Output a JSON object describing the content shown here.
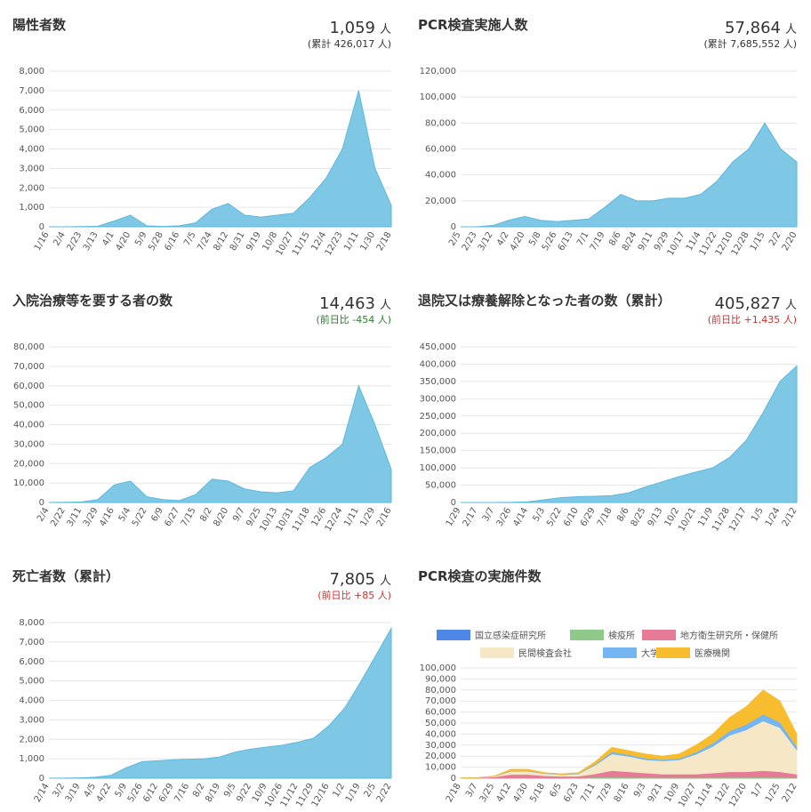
{
  "chart_data": [
    {
      "type": "area",
      "title": "陽性者数",
      "headline": "1,059",
      "unit": "人",
      "note": "(累計 426,017 人)",
      "note_color": "#333333",
      "color": "#7ec8e6",
      "categories": [
        "1/16",
        "2/4",
        "2/23",
        "3/13",
        "4/1",
        "4/20",
        "5/9",
        "5/28",
        "6/16",
        "7/5",
        "7/24",
        "8/12",
        "8/31",
        "9/19",
        "10/8",
        "10/27",
        "11/15",
        "12/4",
        "12/23",
        "1/11",
        "1/30",
        "2/18"
      ],
      "values": [
        0,
        0,
        10,
        30,
        300,
        600,
        50,
        20,
        50,
        200,
        900,
        1200,
        600,
        500,
        600,
        700,
        1500,
        2500,
        4000,
        7000,
        3000,
        1100
      ],
      "ylim": [
        0,
        8000
      ],
      "yticks": [
        0,
        {
          "value": 1000,
          "label": "1,000"
        },
        {
          "value": 2000,
          "label": "2,000"
        },
        {
          "value": 3000,
          "label": "3,000"
        },
        {
          "value": 4000,
          "label": "4,000"
        },
        {
          "value": 5000,
          "label": "5,000"
        },
        {
          "value": 6000,
          "label": "6,000"
        },
        {
          "value": 7000,
          "label": "7,000"
        },
        {
          "value": 8000,
          "label": "8,000"
        }
      ],
      "grid": true
    },
    {
      "type": "area",
      "title": "PCR検査実施人数",
      "headline": "57,864",
      "unit": "人",
      "note": "(累計 7,685,552 人)",
      "note_color": "#333333",
      "color": "#7ec8e6",
      "categories": [
        "2/5",
        "2/23",
        "3/12",
        "4/2",
        "4/20",
        "5/8",
        "5/26",
        "6/13",
        "7/1",
        "7/19",
        "8/6",
        "8/24",
        "9/11",
        "9/29",
        "10/17",
        "11/4",
        "11/22",
        "12/10",
        "12/28",
        "1/15",
        "2/2",
        "2/20"
      ],
      "values": [
        0,
        0,
        1000,
        5000,
        8000,
        5000,
        4000,
        5000,
        6000,
        15000,
        25000,
        20000,
        20000,
        22000,
        22000,
        25000,
        35000,
        50000,
        60000,
        80000,
        60000,
        50000
      ],
      "ylim": [
        0,
        120000
      ],
      "yticks": [
        0,
        {
          "value": 20000,
          "label": "20,000"
        },
        {
          "value": 40000,
          "label": "40,000"
        },
        {
          "value": 60000,
          "label": "60,000"
        },
        {
          "value": 80000,
          "label": "80,000"
        },
        {
          "value": 100000,
          "label": "100,000"
        },
        {
          "value": 120000,
          "label": "120,000"
        }
      ],
      "grid": true
    },
    {
      "type": "area",
      "title": "入院治療等を要する者の数",
      "headline": "14,463",
      "unit": "人",
      "note": "(前日比 -454 人)",
      "note_color": "#2e7d32",
      "color": "#7ec8e6",
      "categories": [
        "2/4",
        "2/22",
        "3/11",
        "3/29",
        "4/16",
        "5/4",
        "5/22",
        "6/9",
        "6/27",
        "7/15",
        "8/2",
        "8/20",
        "9/7",
        "9/25",
        "10/13",
        "10/31",
        "11/18",
        "12/6",
        "12/24",
        "1/11",
        "1/29",
        "2/16"
      ],
      "values": [
        0,
        100,
        300,
        1500,
        9000,
        11000,
        3000,
        1500,
        1000,
        4000,
        12000,
        11000,
        7000,
        5500,
        5000,
        6000,
        18000,
        23000,
        30000,
        60000,
        40000,
        17000
      ],
      "ylim": [
        0,
        80000
      ],
      "yticks": [
        0,
        {
          "value": 10000,
          "label": "10,000"
        },
        {
          "value": 20000,
          "label": "20,000"
        },
        {
          "value": 30000,
          "label": "30,000"
        },
        {
          "value": 40000,
          "label": "40,000"
        },
        {
          "value": 50000,
          "label": "50,000"
        },
        {
          "value": 60000,
          "label": "60,000"
        },
        {
          "value": 70000,
          "label": "70,000"
        },
        {
          "value": 80000,
          "label": "80,000"
        }
      ],
      "grid": true
    },
    {
      "type": "area",
      "title": "退院又は療養解除となった者の数（累計）",
      "headline": "405,827",
      "unit": "人",
      "note": "(前日比 +1,435 人)",
      "note_color": "#d32f2f",
      "color": "#7ec8e6",
      "categories": [
        "1/29",
        "2/17",
        "3/7",
        "3/26",
        "4/14",
        "5/3",
        "5/22",
        "6/10",
        "6/29",
        "7/18",
        "8/6",
        "8/25",
        "9/13",
        "10/2",
        "10/21",
        "11/9",
        "11/28",
        "12/17",
        "1/5",
        "1/24",
        "2/12"
      ],
      "values": [
        0,
        0,
        100,
        500,
        2000,
        8000,
        14000,
        17000,
        18000,
        20000,
        28000,
        45000,
        60000,
        75000,
        88000,
        100000,
        130000,
        180000,
        260000,
        350000,
        395000
      ],
      "ylim": [
        0,
        450000
      ],
      "yticks": [
        0,
        {
          "value": 50000,
          "label": "50,000"
        },
        {
          "value": 100000,
          "label": "100,000"
        },
        {
          "value": 150000,
          "label": "150,000"
        },
        {
          "value": 200000,
          "label": "200,000"
        },
        {
          "value": 250000,
          "label": "250,000"
        },
        {
          "value": 300000,
          "label": "300,000"
        },
        {
          "value": 350000,
          "label": "350,000"
        },
        {
          "value": 400000,
          "label": "400,000"
        },
        {
          "value": 450000,
          "label": "450,000"
        }
      ],
      "grid": true
    },
    {
      "type": "area",
      "title": "死亡者数（累計）",
      "headline": "7,805",
      "unit": "人",
      "note": "(前日比 +85 人)",
      "note_color": "#d32f2f",
      "color": "#7ec8e6",
      "categories": [
        "2/14",
        "3/2",
        "3/19",
        "4/5",
        "4/22",
        "5/9",
        "5/26",
        "6/12",
        "6/29",
        "7/16",
        "8/2",
        "8/19",
        "9/5",
        "9/22",
        "10/9",
        "10/26",
        "11/12",
        "11/29",
        "12/16",
        "1/2",
        "1/19",
        "2/5",
        "2/22"
      ],
      "values": [
        0,
        5,
        20,
        50,
        150,
        550,
        850,
        900,
        950,
        980,
        1000,
        1100,
        1350,
        1500,
        1600,
        1700,
        1850,
        2050,
        2700,
        3600,
        4900,
        6300,
        7700
      ],
      "ylim": [
        0,
        8000
      ],
      "yticks": [
        0,
        {
          "value": 1000,
          "label": "1,000"
        },
        {
          "value": 2000,
          "label": "2,000"
        },
        {
          "value": 3000,
          "label": "3,000"
        },
        {
          "value": 4000,
          "label": "4,000"
        },
        {
          "value": 5000,
          "label": "5,000"
        },
        {
          "value": 6000,
          "label": "6,000"
        },
        {
          "value": 7000,
          "label": "7,000"
        },
        {
          "value": 8000,
          "label": "8,000"
        }
      ],
      "grid": true
    },
    {
      "type": "stacked_area",
      "title": "PCR検査の実施件数",
      "categories": [
        "2/18",
        "3/7",
        "3/25",
        "4/12",
        "4/30",
        "5/18",
        "6/5",
        "6/23",
        "7/11",
        "7/29",
        "8/16",
        "9/3",
        "9/21",
        "10/9",
        "10/27",
        "11/14",
        "12/2",
        "12/20",
        "1/7",
        "1/25",
        "2/12"
      ],
      "series": [
        {
          "name": "国立感染症研究所",
          "color": "#4e87e8",
          "values": [
            0,
            0,
            50,
            100,
            100,
            50,
            50,
            50,
            100,
            100,
            100,
            100,
            100,
            100,
            100,
            100,
            100,
            100,
            100,
            100,
            50
          ]
        },
        {
          "name": "検疫所",
          "color": "#8fc98a",
          "values": [
            0,
            100,
            200,
            300,
            300,
            200,
            200,
            300,
            800,
            900,
            800,
            700,
            600,
            600,
            600,
            700,
            800,
            800,
            900,
            800,
            600
          ]
        },
        {
          "name": "地方衛生研究所・保健所",
          "color": "#e77a96",
          "values": [
            100,
            300,
            1000,
            3000,
            3000,
            2000,
            1500,
            1500,
            3000,
            6000,
            5000,
            4000,
            3000,
            3000,
            3000,
            4000,
            5000,
            5000,
            6000,
            5000,
            3000
          ]
        },
        {
          "name": "民間検査会社",
          "color": "#f6e8c6",
          "values": [
            200,
            100,
            500,
            3000,
            3000,
            2000,
            1500,
            2000,
            8000,
            15000,
            14000,
            12000,
            12000,
            13000,
            18000,
            24000,
            33000,
            38000,
            45000,
            40000,
            22000
          ]
        },
        {
          "name": "大学等",
          "color": "#74b6f1",
          "values": [
            0,
            0,
            100,
            500,
            500,
            300,
            300,
            400,
            1000,
            2000,
            1500,
            1500,
            1300,
            1300,
            2000,
            3000,
            4000,
            5000,
            6000,
            5000,
            3000
          ]
        },
        {
          "name": "医療機関",
          "color": "#f8bd2e",
          "values": [
            0,
            0,
            150,
            1100,
            1100,
            450,
            450,
            750,
            2100,
            4000,
            3600,
            3700,
            3000,
            4000,
            6300,
            8200,
            12100,
            16100,
            22000,
            19100,
            11350
          ]
        }
      ],
      "ylim": [
        0,
        100000
      ],
      "yticks": [
        0,
        {
          "value": 10000,
          "label": "10,000"
        },
        {
          "value": 20000,
          "label": "20,000"
        },
        {
          "value": 30000,
          "label": "30,000"
        },
        {
          "value": 40000,
          "label": "40,000"
        },
        {
          "value": 50000,
          "label": "50,000"
        },
        {
          "value": 60000,
          "label": "60,000"
        },
        {
          "value": 70000,
          "label": "70,000"
        },
        {
          "value": 80000,
          "label": "80,000"
        },
        {
          "value": 90000,
          "label": "90,000"
        },
        {
          "value": 100000,
          "label": "100,000"
        }
      ],
      "grid": true
    }
  ]
}
